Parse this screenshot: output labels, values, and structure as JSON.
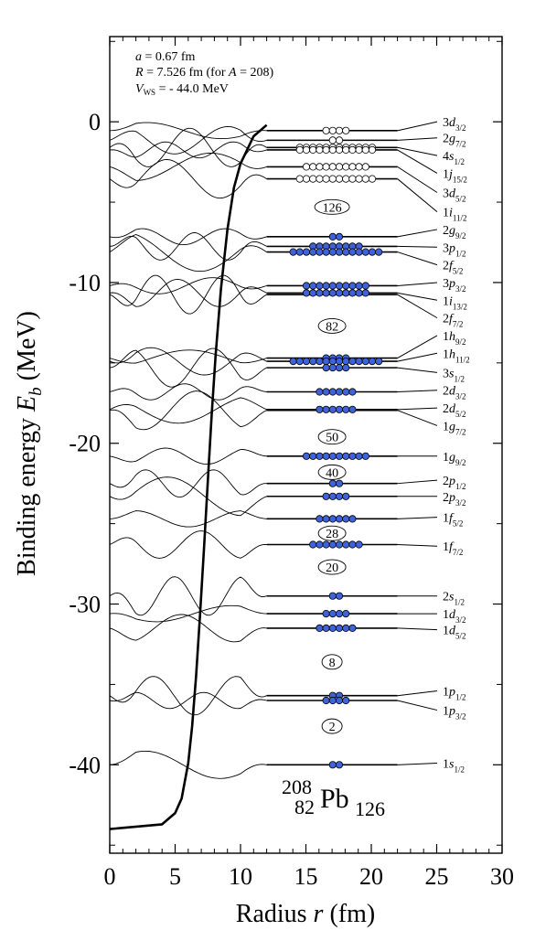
{
  "chart_data": {
    "type": "line",
    "title": "",
    "xlabel": "Radius",
    "xlabel_var": "r",
    "xlabel_unit": "(fm)",
    "ylabel": "Binding energy",
    "ylabel_var": "E",
    "ylabel_sub": "b",
    "ylabel_unit": "(MeV)",
    "xlim": [
      0,
      30
    ],
    "ylim": [
      -45.5,
      5.3
    ],
    "xticks": [
      "0",
      "5",
      "10",
      "15",
      "20",
      "25",
      "30"
    ],
    "yticks": [
      "0",
      "-10",
      "-20",
      "-30",
      "-40"
    ],
    "parameters": {
      "a_var": "a",
      "a_text": " = 0.67 fm",
      "R_var": "R",
      "R_text": " = 7.526 fm (for ",
      "A_var": "A",
      "A_text": " = 208)",
      "V_var": "V",
      "V_sub": "WS",
      "V_text": " = - 44.0 MeV"
    },
    "nuclide": {
      "mass": "208",
      "charge": "82",
      "symbol": "Pb",
      "neutrons": "126"
    },
    "potential": {
      "depth": -44.0,
      "radius": 7.526,
      "diffuseness": 0.67,
      "x": [
        0,
        4,
        5,
        5.5,
        6,
        6.3,
        6.6,
        6.9,
        7.2,
        7.526,
        7.8,
        8.1,
        8.5,
        9,
        9.5,
        10,
        11,
        12
      ],
      "y": [
        -44.0,
        -43.7,
        -43.0,
        -42.1,
        -39.9,
        -37.6,
        -34.5,
        -30.7,
        -26.6,
        -22.0,
        -18.2,
        -14.5,
        -10.4,
        -6.7,
        -4.1,
        -2.6,
        -0.9,
        -0.2
      ]
    },
    "magic_numbers": [
      {
        "label": "2",
        "energy": -37.6
      },
      {
        "label": "8",
        "energy": -33.6
      },
      {
        "label": "20",
        "energy": -27.7
      },
      {
        "label": "28",
        "energy": -25.6
      },
      {
        "label": "40",
        "energy": -21.8
      },
      {
        "label": "50",
        "energy": -19.6
      },
      {
        "label": "82",
        "energy": -12.7
      },
      {
        "label": "126",
        "energy": -5.3
      }
    ],
    "levels": [
      {
        "n": "3",
        "l": "d",
        "j": "3/2",
        "energy": -0.55,
        "nucleons": 4,
        "filled": false,
        "label_y": 0.0
      },
      {
        "n": "2",
        "l": "g",
        "j": "7/2",
        "energy": -1.15,
        "nucleons": 2,
        "filled": false,
        "label_y": -1.0
      },
      {
        "n": "4",
        "l": "s",
        "j": "1/2",
        "energy": -1.6,
        "nucleons": 12,
        "filled": false,
        "label_y": -2.1
      },
      {
        "n": "1",
        "l": "j",
        "j": "15/2",
        "energy": -1.75,
        "nucleons": 12,
        "filled": false,
        "label_y": -3.2
      },
      {
        "n": "3",
        "l": "d",
        "j": "5/2",
        "energy": -2.8,
        "nucleons": 10,
        "filled": false,
        "label_y": -4.4
      },
      {
        "n": "1",
        "l": "i",
        "j": "11/2",
        "energy": -3.55,
        "nucleons": 12,
        "filled": false,
        "label_y": -5.6
      },
      {
        "n": "2",
        "l": "g",
        "j": "9/2",
        "energy": -7.15,
        "nucleons": 2,
        "filled": true,
        "label_y": -6.7
      },
      {
        "n": "3",
        "l": "p",
        "j": "1/2",
        "energy": -7.75,
        "nucleons": 8,
        "filled": true,
        "label_y": -7.8
      },
      {
        "n": "2",
        "l": "f",
        "j": "5/2",
        "energy": -8.1,
        "nucleons": 14,
        "filled": true,
        "label_y": -8.9
      },
      {
        "n": "3",
        "l": "p",
        "j": "3/2",
        "energy": -10.2,
        "nucleons": 10,
        "filled": true,
        "label_y": -10.0
      },
      {
        "n": "1",
        "l": "i",
        "j": "13/2",
        "energy": -10.65,
        "nucleons": 10,
        "filled": true,
        "label_y": -11.1
      },
      {
        "n": "2",
        "l": "f",
        "j": "7/2",
        "energy": -10.75,
        "nucleons": 0,
        "filled": true,
        "label_y": -12.2
      },
      {
        "n": "1",
        "l": "h",
        "j": "9/2",
        "energy": -14.7,
        "nucleons": 4,
        "filled": true,
        "label_y": -13.3
      },
      {
        "n": "1",
        "l": "h",
        "j": "11/2",
        "energy": -14.9,
        "nucleons": 14,
        "filled": true,
        "label_y": -14.4
      },
      {
        "n": "3",
        "l": "s",
        "j": "1/2",
        "energy": -15.3,
        "nucleons": 4,
        "filled": true,
        "label_y": -15.6
      },
      {
        "n": "2",
        "l": "d",
        "j": "3/2",
        "energy": -16.8,
        "nucleons": 6,
        "filled": true,
        "label_y": -16.7
      },
      {
        "n": "2",
        "l": "d",
        "j": "5/2",
        "energy": -17.9,
        "nucleons": 6,
        "filled": true,
        "label_y": -17.8
      },
      {
        "n": "1",
        "l": "g",
        "j": "7/2",
        "energy": -17.95,
        "nucleons": 0,
        "filled": true,
        "label_y": -18.9
      },
      {
        "n": "1",
        "l": "g",
        "j": "9/2",
        "energy": -20.8,
        "nucleons": 10,
        "filled": true,
        "label_y": -20.8
      },
      {
        "n": "2",
        "l": "p",
        "j": "1/2",
        "energy": -22.5,
        "nucleons": 2,
        "filled": true,
        "label_y": -22.3
      },
      {
        "n": "2",
        "l": "p",
        "j": "3/2",
        "energy": -23.3,
        "nucleons": 4,
        "filled": true,
        "label_y": -23.3
      },
      {
        "n": "1",
        "l": "f",
        "j": "5/2",
        "energy": -24.7,
        "nucleons": 6,
        "filled": true,
        "label_y": -24.6
      },
      {
        "n": "1",
        "l": "f",
        "j": "7/2",
        "energy": -26.3,
        "nucleons": 8,
        "filled": true,
        "label_y": -26.4
      },
      {
        "n": "2",
        "l": "s",
        "j": "1/2",
        "energy": -29.5,
        "nucleons": 2,
        "filled": true,
        "label_y": -29.5
      },
      {
        "n": "1",
        "l": "d",
        "j": "3/2",
        "energy": -30.6,
        "nucleons": 4,
        "filled": true,
        "label_y": -30.6
      },
      {
        "n": "1",
        "l": "d",
        "j": "5/2",
        "energy": -31.5,
        "nucleons": 6,
        "filled": true,
        "label_y": -31.6
      },
      {
        "n": "1",
        "l": "p",
        "j": "1/2",
        "energy": -35.7,
        "nucleons": 2,
        "filled": true,
        "label_y": -35.4
      },
      {
        "n": "1",
        "l": "p",
        "j": "3/2",
        "energy": -36.0,
        "nucleons": 4,
        "filled": true,
        "label_y": -36.6
      },
      {
        "n": "1",
        "l": "s",
        "j": "1/2",
        "energy": -40.0,
        "nucleons": 2,
        "filled": true,
        "label_y": -39.9
      }
    ]
  },
  "colors": {
    "filled_nucleon": "#3f62d8",
    "empty_nucleon": "#ffffff",
    "line": "#000000",
    "background": "#ffffff"
  }
}
